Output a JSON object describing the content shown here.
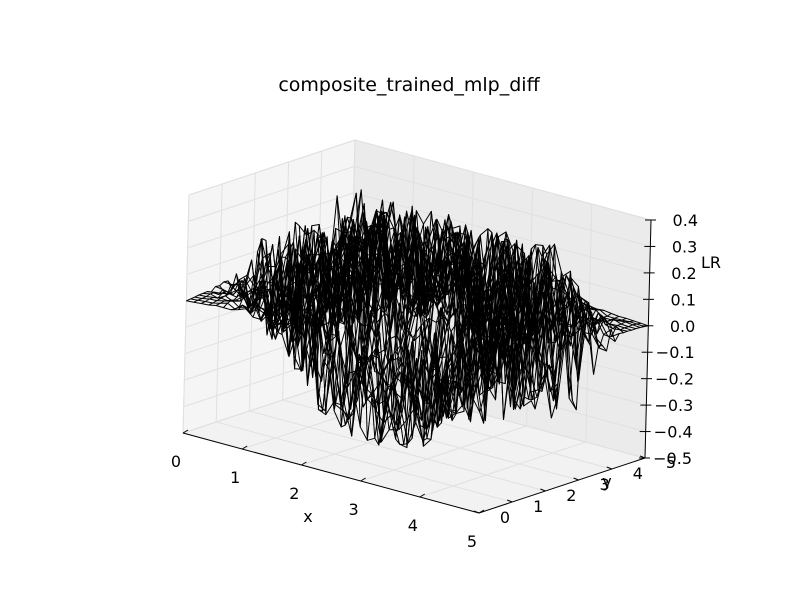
{
  "chart_data": {
    "type": "surface-wireframe",
    "title": "composite_trained_mlp_diff",
    "xlabel": "x",
    "ylabel": "y",
    "zlabel": "LR",
    "xlim": [
      0,
      5
    ],
    "ylim": [
      0,
      5
    ],
    "zlim": [
      -0.5,
      0.4
    ],
    "x_ticks": [
      "0",
      "1",
      "2",
      "3",
      "4",
      "5"
    ],
    "y_ticks": [
      "0",
      "1",
      "2",
      "3",
      "4",
      "5"
    ],
    "z_ticks": [
      "−0.5",
      "−0.4",
      "−0.3",
      "−0.2",
      "−0.1",
      "0.0",
      "0.1",
      "0.2",
      "0.3",
      "0.4"
    ],
    "grid": true,
    "surface": {
      "style": "black wireframe",
      "color": "#000000",
      "x_range": [
        0,
        5
      ],
      "y_range": [
        0,
        5
      ],
      "z_range_approx": [
        -0.45,
        0.4
      ],
      "description_points": [
        {
          "x": 0,
          "y": 0,
          "z": 0.0
        },
        {
          "x": 1.5,
          "y": 0.5,
          "z": -0.1
        },
        {
          "x": 3,
          "y": 1,
          "z": -0.4
        },
        {
          "x": 1.5,
          "y": 2.5,
          "z": 0.35
        },
        {
          "x": 3.5,
          "y": 3.5,
          "z": 0.3
        },
        {
          "x": 5,
          "y": 5,
          "z": 0.0
        }
      ]
    }
  }
}
